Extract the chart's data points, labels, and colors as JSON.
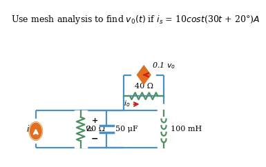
{
  "title": "Use mesh analysis to find $v_0(t)$ if $i_s$ = 10$cost$(30$t$ + 20°)$A$",
  "title_fontsize": 9.5,
  "bg_color": "#ffffff",
  "wire_color": "#4a90c4",
  "resistor_color": "#4a9060",
  "inductor_color": "#4a9060",
  "source_orange": "#e07020",
  "red_color": "#cc2222",
  "resistor_20_label": "20 Ω",
  "resistor_40_label": "40 Ω",
  "capacitor_label": "50 μF",
  "inductor_label": "100 mH",
  "dep_source_label": "0.1 $v_o$",
  "is_label": "$i_s$",
  "vo_label": "$v_o$",
  "io_label": "$i_o$"
}
